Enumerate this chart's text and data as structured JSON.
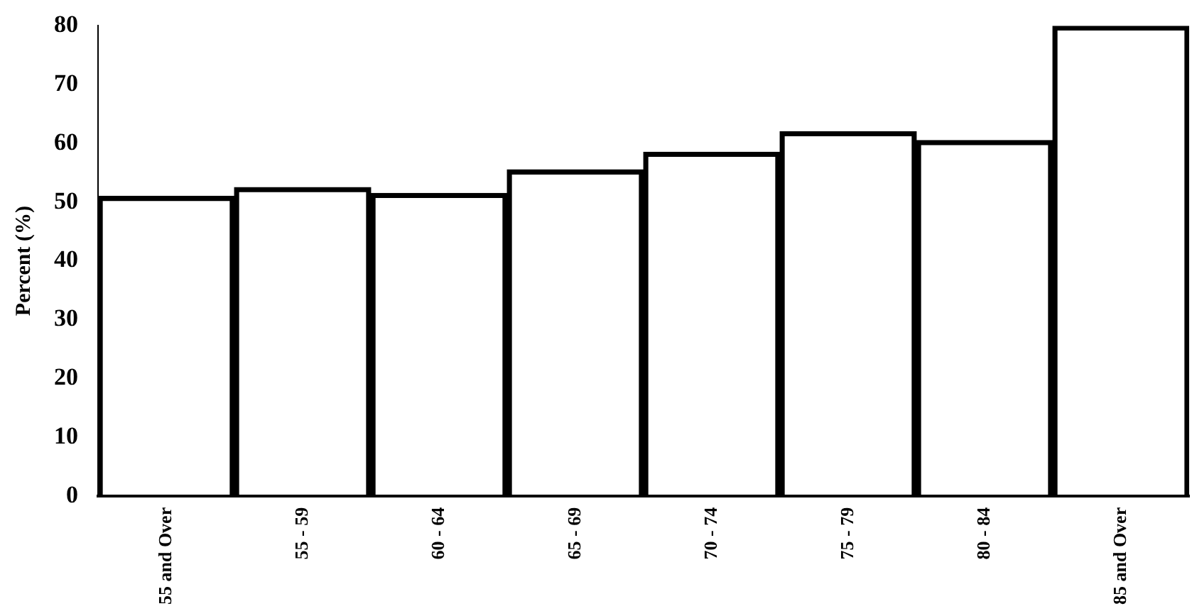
{
  "chart_data": {
    "type": "bar",
    "ylabel": "Percent (%)",
    "categories": [
      "55 and Over",
      "55 - 59",
      "60 - 64",
      "65 - 69",
      "70 - 74",
      "75 - 79",
      "80 - 84",
      "85 and Over"
    ],
    "values": [
      51,
      52.5,
      51.5,
      55.5,
      58.5,
      62,
      60.5,
      80
    ],
    "color": "#000000",
    "ylim": [
      0,
      80
    ],
    "yticks": [
      0,
      10,
      20,
      30,
      40,
      50,
      60,
      70,
      80
    ],
    "grid": false
  }
}
